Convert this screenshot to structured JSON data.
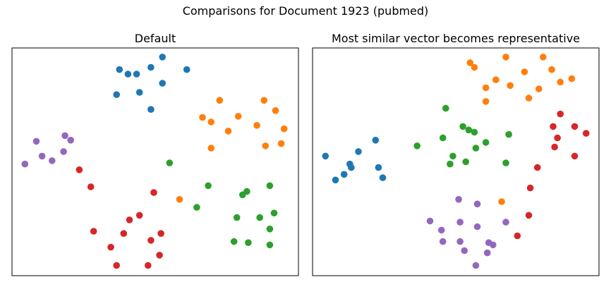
{
  "title": "Comparisons for Document 1923 (pubmed)",
  "colors": {
    "c0": "#1f77b4",
    "c1": "#ff7f0e",
    "c2": "#2ca02c",
    "c3": "#d62728",
    "c4": "#9467bd"
  },
  "chart_data": [
    {
      "type": "scatter",
      "title": "Default",
      "xlabel": "",
      "ylabel": "",
      "xticks": [],
      "yticks": [],
      "grid": false,
      "xlim": [
        0,
        100
      ],
      "ylim": [
        0,
        100
      ],
      "series": [
        {
          "color": "c0",
          "points": [
            [
              37.5,
              90.5
            ],
            [
              40.5,
              88.5
            ],
            [
              43.5,
              88.5
            ],
            [
              48.5,
              91.5
            ],
            [
              52.5,
              96.0
            ],
            [
              61.0,
              90.5
            ],
            [
              36.5,
              79.5
            ],
            [
              44.5,
              80.5
            ],
            [
              52.5,
              84.5
            ],
            [
              48.5,
              73.0
            ]
          ]
        },
        {
          "color": "c1",
          "points": [
            [
              72.5,
              77.0
            ],
            [
              88.0,
              77.0
            ],
            [
              66.5,
              69.5
            ],
            [
              69.5,
              67.5
            ],
            [
              79.0,
              70.0
            ],
            [
              92.0,
              72.5
            ],
            [
              75.5,
              63.5
            ],
            [
              85.5,
              66.0
            ],
            [
              95.0,
              64.5
            ],
            [
              69.5,
              56.0
            ],
            [
              94.0,
              58.0
            ],
            [
              88.5,
              57.0
            ],
            [
              58.5,
              33.5
            ]
          ]
        },
        {
          "color": "c2",
          "points": [
            [
              55.0,
              49.5
            ],
            [
              68.5,
              39.5
            ],
            [
              90.0,
              39.5
            ],
            [
              80.5,
              35.5
            ],
            [
              82.0,
              37.0
            ],
            [
              64.5,
              30.0
            ],
            [
              78.5,
              25.5
            ],
            [
              86.5,
              25.5
            ],
            [
              91.5,
              27.5
            ],
            [
              90.0,
              20.5
            ],
            [
              77.5,
              15.0
            ],
            [
              82.5,
              14.5
            ],
            [
              90.0,
              13.5
            ]
          ]
        },
        {
          "color": "c3",
          "points": [
            [
              23.5,
              46.5
            ],
            [
              27.5,
              39.0
            ],
            [
              49.5,
              36.5
            ],
            [
              44.5,
              26.5
            ],
            [
              41.0,
              24.5
            ],
            [
              28.5,
              19.5
            ],
            [
              39.0,
              18.5
            ],
            [
              52.0,
              18.5
            ],
            [
              48.5,
              15.5
            ],
            [
              34.5,
              12.5
            ],
            [
              51.5,
              9.0
            ],
            [
              36.5,
              4.5
            ],
            [
              47.5,
              4.5
            ]
          ]
        },
        {
          "color": "c4",
          "points": [
            [
              18.5,
              61.5
            ],
            [
              20.5,
              59.5
            ],
            [
              8.5,
              59.0
            ],
            [
              18.0,
              54.5
            ],
            [
              10.5,
              52.5
            ],
            [
              14.0,
              50.5
            ],
            [
              4.5,
              49.0
            ]
          ]
        }
      ]
    },
    {
      "type": "scatter",
      "title": "Most similar vector becomes representative",
      "xlabel": "",
      "ylabel": "",
      "xticks": [],
      "yticks": [],
      "grid": false,
      "xlim": [
        0,
        100
      ],
      "ylim": [
        0,
        100
      ],
      "series": [
        {
          "color": "c0",
          "points": [
            [
              22.0,
              59.5
            ],
            [
              16.0,
              54.5
            ],
            [
              4.5,
              52.5
            ],
            [
              13.0,
              49.0
            ],
            [
              13.5,
              47.5
            ],
            [
              23.0,
              47.5
            ],
            [
              11.0,
              44.5
            ],
            [
              24.5,
              43.0
            ],
            [
              8.0,
              42.0
            ]
          ]
        },
        {
          "color": "c1",
          "points": [
            [
              55.0,
              93.5
            ],
            [
              67.5,
              96.0
            ],
            [
              80.5,
              96.0
            ],
            [
              56.5,
              91.5
            ],
            [
              74.0,
              89.5
            ],
            [
              83.5,
              90.5
            ],
            [
              60.5,
              82.5
            ],
            [
              64.0,
              86.0
            ],
            [
              69.0,
              83.5
            ],
            [
              86.5,
              85.0
            ],
            [
              90.5,
              86.5
            ],
            [
              79.0,
              82.0
            ],
            [
              75.5,
              78.0
            ],
            [
              60.5,
              76.5
            ],
            [
              66.0,
              32.5
            ]
          ]
        },
        {
          "color": "c2",
          "points": [
            [
              46.5,
              73.5
            ],
            [
              52.5,
              65.5
            ],
            [
              54.5,
              64.0
            ],
            [
              56.5,
              63.0
            ],
            [
              45.5,
              60.5
            ],
            [
              68.5,
              62.0
            ],
            [
              60.5,
              58.5
            ],
            [
              36.5,
              57.0
            ],
            [
              57.0,
              56.0
            ],
            [
              49.0,
              52.5
            ],
            [
              48.0,
              49.0
            ],
            [
              53.5,
              50.0
            ],
            [
              67.5,
              49.5
            ]
          ]
        },
        {
          "color": "c3",
          "points": [
            [
              86.5,
              71.0
            ],
            [
              84.0,
              65.5
            ],
            [
              91.5,
              65.5
            ],
            [
              95.5,
              62.5
            ],
            [
              85.5,
              60.5
            ],
            [
              84.5,
              56.5
            ],
            [
              91.5,
              52.5
            ],
            [
              78.5,
              47.5
            ],
            [
              76.0,
              38.5
            ],
            [
              75.5,
              26.5
            ],
            [
              71.5,
              17.5
            ]
          ]
        },
        {
          "color": "c4",
          "points": [
            [
              51.0,
              33.5
            ],
            [
              57.5,
              31.5
            ],
            [
              41.0,
              24.0
            ],
            [
              51.5,
              23.5
            ],
            [
              57.5,
              21.5
            ],
            [
              67.5,
              23.5
            ],
            [
              45.0,
              20.0
            ],
            [
              45.5,
              15.0
            ],
            [
              51.5,
              15.0
            ],
            [
              61.5,
              14.5
            ],
            [
              63.0,
              13.5
            ],
            [
              53.0,
              11.0
            ],
            [
              61.0,
              10.0
            ],
            [
              57.0,
              4.5
            ]
          ]
        }
      ]
    }
  ]
}
